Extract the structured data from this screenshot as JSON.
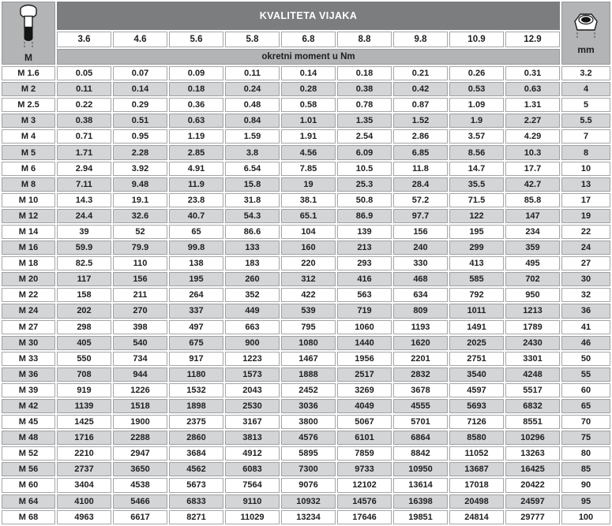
{
  "colors": {
    "title_band": "#7c7d7f",
    "light_band": "#b3b4b6",
    "stripe_row": "#d4d5d7",
    "cell_border": "#a5a6a8",
    "text": "#202022",
    "title_text": "#ffffff"
  },
  "header": {
    "title": "KVALITETA VIJAKA",
    "subtitle": "okretni moment u Nm",
    "left_label": "M",
    "right_label": "mm",
    "left_icon": "bolt-side-view-icon",
    "right_icon": "nut-top-view-icon",
    "grades": [
      "3.6",
      "4.6",
      "5.6",
      "5.8",
      "6.8",
      "8.8",
      "9.8",
      "10.9",
      "12.9"
    ]
  },
  "chart_data": {
    "type": "table",
    "title": "KVALITETA VIJAKA",
    "subtitle": "okretni moment u Nm",
    "columns": [
      "M",
      "3.6",
      "4.6",
      "5.6",
      "5.8",
      "6.8",
      "8.8",
      "9.8",
      "10.9",
      "12.9",
      "mm"
    ],
    "rows": [
      [
        "M 1.6",
        "0.05",
        "0.07",
        "0.09",
        "0.11",
        "0.14",
        "0.18",
        "0.21",
        "0.26",
        "0.31",
        "3.2"
      ],
      [
        "M 2",
        "0.11",
        "0.14",
        "0.18",
        "0.24",
        "0.28",
        "0.38",
        "0.42",
        "0.53",
        "0.63",
        "4"
      ],
      [
        "M 2.5",
        "0.22",
        "0.29",
        "0.36",
        "0.48",
        "0.58",
        "0.78",
        "0.87",
        "1.09",
        "1.31",
        "5"
      ],
      [
        "M 3",
        "0.38",
        "0.51",
        "0.63",
        "0.84",
        "1.01",
        "1.35",
        "1.52",
        "1.9",
        "2.27",
        "5.5"
      ],
      [
        "M 4",
        "0.71",
        "0.95",
        "1.19",
        "1.59",
        "1.91",
        "2.54",
        "2.86",
        "3.57",
        "4.29",
        "7"
      ],
      [
        "M 5",
        "1.71",
        "2.28",
        "2.85",
        "3.8",
        "4.56",
        "6.09",
        "6.85",
        "8.56",
        "10.3",
        "8"
      ],
      [
        "M 6",
        "2.94",
        "3.92",
        "4.91",
        "6.54",
        "7.85",
        "10.5",
        "11.8",
        "14.7",
        "17.7",
        "10"
      ],
      [
        "M 8",
        "7.11",
        "9.48",
        "11.9",
        "15.8",
        "19",
        "25.3",
        "28.4",
        "35.5",
        "42.7",
        "13"
      ],
      [
        "M 10",
        "14.3",
        "19.1",
        "23.8",
        "31.8",
        "38.1",
        "50.8",
        "57.2",
        "71.5",
        "85.8",
        "17"
      ],
      [
        "M 12",
        "24.4",
        "32.6",
        "40.7",
        "54.3",
        "65.1",
        "86.9",
        "97.7",
        "122",
        "147",
        "19"
      ],
      [
        "M 14",
        "39",
        "52",
        "65",
        "86.6",
        "104",
        "139",
        "156",
        "195",
        "234",
        "22"
      ],
      [
        "M 16",
        "59.9",
        "79.9",
        "99.8",
        "133",
        "160",
        "213",
        "240",
        "299",
        "359",
        "24"
      ],
      [
        "M 18",
        "82.5",
        "110",
        "138",
        "183",
        "220",
        "293",
        "330",
        "413",
        "495",
        "27"
      ],
      [
        "M 20",
        "117",
        "156",
        "195",
        "260",
        "312",
        "416",
        "468",
        "585",
        "702",
        "30"
      ],
      [
        "M 22",
        "158",
        "211",
        "264",
        "352",
        "422",
        "563",
        "634",
        "792",
        "950",
        "32"
      ],
      [
        "M 24",
        "202",
        "270",
        "337",
        "449",
        "539",
        "719",
        "809",
        "1011",
        "1213",
        "36"
      ],
      [
        "M 27",
        "298",
        "398",
        "497",
        "663",
        "795",
        "1060",
        "1193",
        "1491",
        "1789",
        "41"
      ],
      [
        "M 30",
        "405",
        "540",
        "675",
        "900",
        "1080",
        "1440",
        "1620",
        "2025",
        "2430",
        "46"
      ],
      [
        "M 33",
        "550",
        "734",
        "917",
        "1223",
        "1467",
        "1956",
        "2201",
        "2751",
        "3301",
        "50"
      ],
      [
        "M 36",
        "708",
        "944",
        "1180",
        "1573",
        "1888",
        "2517",
        "2832",
        "3540",
        "4248",
        "55"
      ],
      [
        "M 39",
        "919",
        "1226",
        "1532",
        "2043",
        "2452",
        "3269",
        "3678",
        "4597",
        "5517",
        "60"
      ],
      [
        "M 42",
        "1139",
        "1518",
        "1898",
        "2530",
        "3036",
        "4049",
        "4555",
        "5693",
        "6832",
        "65"
      ],
      [
        "M 45",
        "1425",
        "1900",
        "2375",
        "3167",
        "3800",
        "5067",
        "5701",
        "7126",
        "8551",
        "70"
      ],
      [
        "M 48",
        "1716",
        "2288",
        "2860",
        "3813",
        "4576",
        "6101",
        "6864",
        "8580",
        "10296",
        "75"
      ],
      [
        "M 52",
        "2210",
        "2947",
        "3684",
        "4912",
        "5895",
        "7859",
        "8842",
        "11052",
        "13263",
        "80"
      ],
      [
        "M 56",
        "2737",
        "3650",
        "4562",
        "6083",
        "7300",
        "9733",
        "10950",
        "13687",
        "16425",
        "85"
      ],
      [
        "M 60",
        "3404",
        "4538",
        "5673",
        "7564",
        "9076",
        "12102",
        "13614",
        "17018",
        "20422",
        "90"
      ],
      [
        "M 64",
        "4100",
        "5466",
        "6833",
        "9110",
        "10932",
        "14576",
        "16398",
        "20498",
        "24597",
        "95"
      ],
      [
        "M 68",
        "4963",
        "6617",
        "8271",
        "11029",
        "13234",
        "17646",
        "19851",
        "24814",
        "29777",
        "100"
      ]
    ]
  }
}
